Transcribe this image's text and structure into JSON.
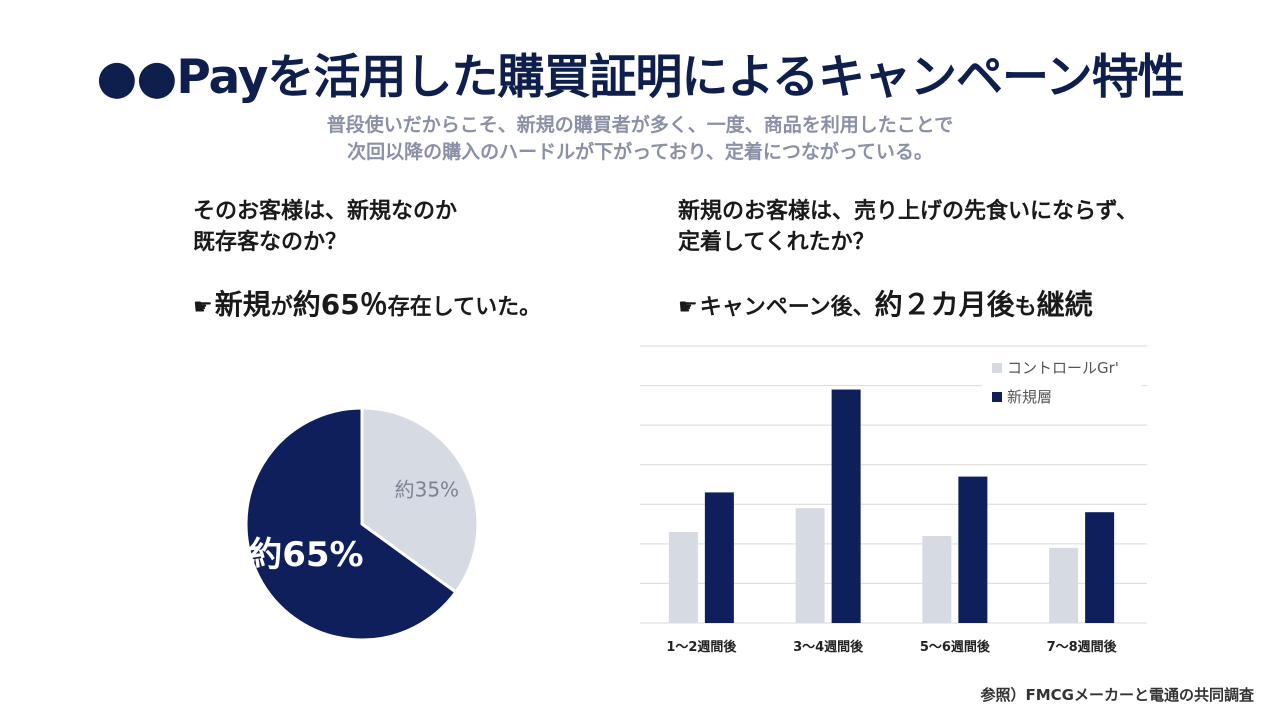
{
  "title": "●●Payを活用した購買証明によるキャンペーン特性",
  "subtitle": {
    "line1": "普段使いだからこそ、新規の購買者が多く、一度、商品を利用したことで",
    "line2": "次回以降の購入のハードルが下がっており、定着につながっている。"
  },
  "left": {
    "question_line1": "そのお客様は、新規なのか",
    "question_line2": "既存客なのか？",
    "pointer": "☛",
    "answer_part1": "新規",
    "answer_part2": "が",
    "answer_part3": "約65％",
    "answer_part4": "存在していた。"
  },
  "right": {
    "question_line1": "新規のお客様は、売り上げの先食いにならず、",
    "question_line2": "定着してくれたか？",
    "pointer": "☛",
    "answer_part1": "キャンペーン後、",
    "answer_part2": "約２カ月後",
    "answer_part3": "も",
    "answer_part4": "継続"
  },
  "colors": {
    "navy": "#0f1f5c",
    "light": "#d6dbe3",
    "title": "#0f1f4d"
  },
  "chart_data": [
    {
      "type": "pie",
      "slices": [
        {
          "label": "約35%",
          "value": 35,
          "color": "#d6dbe3"
        },
        {
          "label": "約65%",
          "value": 65,
          "color": "#0f1f5c"
        }
      ]
    },
    {
      "type": "bar",
      "categories": [
        "1〜2週間後",
        "3〜4週間後",
        "5〜6週間後",
        "7〜8週間後"
      ],
      "series": [
        {
          "name": "コントロールGr'",
          "values": [
            23,
            29,
            22,
            19
          ],
          "color": "#d6dbe3"
        },
        {
          "name": "新規層",
          "values": [
            33,
            59,
            37,
            28
          ],
          "color": "#0f1f5c"
        }
      ],
      "ylim": [
        0,
        70
      ],
      "grid": true,
      "legend": "top-right"
    }
  ],
  "source": "参照）FMCGメーカーと電通の共同調査"
}
